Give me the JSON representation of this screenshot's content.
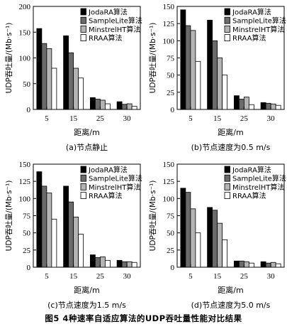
{
  "figure": {
    "caption": "图5  4种速率自适应算法的UDP吞吐量性能对比结果"
  },
  "series_styles": [
    {
      "name": "JodaRA算法",
      "color": "#000000"
    },
    {
      "name": "SampleLite算法",
      "color": "#6b6b6b"
    },
    {
      "name": "MinstrelHT算法",
      "color": "#b4b4b4"
    },
    {
      "name": "RRAA算法",
      "color": "#ffffff"
    }
  ],
  "chart_data": [
    {
      "type": "bar",
      "caption": "(a)节点静止",
      "xlabel": "距离/m",
      "ylabel": "UDP吞吐量/(Mb·s⁻¹)",
      "categories": [
        "5",
        "15",
        "25",
        "30"
      ],
      "yticks": [
        0,
        50,
        100,
        150,
        200
      ],
      "ylim": [
        0,
        200
      ],
      "legend": "top-right",
      "series": [
        {
          "name": "JodaRA算法",
          "values": [
            157,
            143,
            23,
            15
          ]
        },
        {
          "name": "SampleLite算法",
          "values": [
            128,
            110,
            20,
            10
          ]
        },
        {
          "name": "MinstrelHT算法",
          "values": [
            118,
            80,
            18,
            11
          ]
        },
        {
          "name": "RRAA算法",
          "values": [
            80,
            61,
            11,
            6
          ]
        }
      ]
    },
    {
      "type": "bar",
      "caption": "(b)节点速度为0.5 m/s",
      "xlabel": "距离/m",
      "ylabel": "UDP吞吐量/(Mb·s⁻¹)",
      "categories": [
        "5",
        "15",
        "25",
        "30"
      ],
      "yticks": [
        0,
        25,
        50,
        75,
        100,
        125,
        150
      ],
      "ylim": [
        0,
        150
      ],
      "legend": "top-right",
      "series": [
        {
          "name": "JodaRA算法",
          "values": [
            145,
            130,
            20,
            10
          ]
        },
        {
          "name": "SampleLite算法",
          "values": [
            122,
            100,
            15,
            9
          ]
        },
        {
          "name": "MinstrelHT算法",
          "values": [
            115,
            75,
            18,
            8
          ]
        },
        {
          "name": "RRAA算法",
          "values": [
            70,
            50,
            7,
            6
          ]
        }
      ]
    },
    {
      "type": "bar",
      "caption": "(c)节点速度为1.5 m/s",
      "xlabel": "距离/m",
      "ylabel": "UDP吞吐量/(Mb·s⁻¹)",
      "categories": [
        "5",
        "15",
        "25",
        "30"
      ],
      "yticks": [
        0,
        25,
        50,
        75,
        100,
        125,
        150
      ],
      "ylim": [
        0,
        150
      ],
      "legend": "top-right",
      "series": [
        {
          "name": "JodaRA算法",
          "values": [
            139,
            118,
            18,
            10
          ]
        },
        {
          "name": "SampleLite算法",
          "values": [
            118,
            95,
            14,
            8
          ]
        },
        {
          "name": "MinstrelHT算法",
          "values": [
            108,
            73,
            15,
            8
          ]
        },
        {
          "name": "RRAA算法",
          "values": [
            70,
            48,
            10,
            7
          ]
        }
      ]
    },
    {
      "type": "bar",
      "caption": "(d)节点速度为5.0 m/s",
      "xlabel": "距离/m",
      "ylabel": "UDP吞吐量/(Mb·s⁻¹)",
      "categories": [
        "5",
        "15",
        "25",
        "30"
      ],
      "yticks": [
        0,
        25,
        50,
        75,
        100,
        125,
        150
      ],
      "ylim": [
        0,
        150
      ],
      "legend": "top-right",
      "series": [
        {
          "name": "JodaRA算法",
          "values": [
            115,
            87,
            9,
            8
          ]
        },
        {
          "name": "SampleLite算法",
          "values": [
            109,
            83,
            9,
            6
          ]
        },
        {
          "name": "MinstrelHT算法",
          "values": [
            85,
            64,
            8,
            7
          ]
        },
        {
          "name": "RRAA算法",
          "values": [
            50,
            40,
            6,
            5
          ]
        }
      ]
    }
  ]
}
